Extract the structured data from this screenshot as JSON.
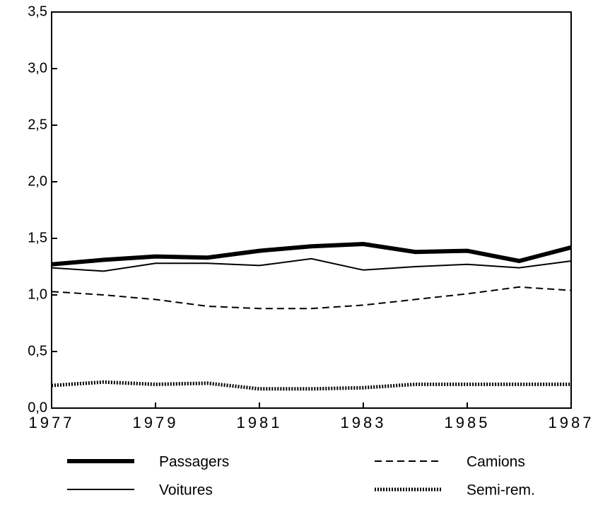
{
  "chart_data": {
    "type": "line",
    "x": [
      1977,
      1978,
      1979,
      1980,
      1981,
      1982,
      1983,
      1984,
      1985,
      1986,
      1987
    ],
    "series": [
      {
        "name": "Passagers",
        "color": "#000000",
        "style": "solid",
        "width": 6,
        "values": [
          1.27,
          1.31,
          1.34,
          1.33,
          1.39,
          1.43,
          1.45,
          1.38,
          1.39,
          1.3,
          1.42
        ]
      },
      {
        "name": "Camions",
        "color": "#000000",
        "style": "dashed",
        "width": 2,
        "values": [
          1.03,
          1.0,
          0.96,
          0.9,
          0.88,
          0.88,
          0.91,
          0.96,
          1.01,
          1.07,
          1.04
        ]
      },
      {
        "name": "Voitures",
        "color": "#000000",
        "style": "solid",
        "width": 2,
        "values": [
          1.24,
          1.21,
          1.28,
          1.28,
          1.26,
          1.32,
          1.22,
          1.25,
          1.27,
          1.24,
          1.3
        ]
      },
      {
        "name": "Semi-rem.",
        "color": "#000000",
        "style": "dotted",
        "width": 5,
        "values": [
          0.2,
          0.23,
          0.21,
          0.22,
          0.17,
          0.17,
          0.18,
          0.21,
          0.21,
          0.21,
          0.21
        ]
      }
    ],
    "xlim": [
      1977,
      1987
    ],
    "xticks": [
      1977,
      1979,
      1981,
      1983,
      1985,
      1987
    ],
    "ylim": [
      0,
      3.5
    ],
    "yticks": [
      {
        "value": 0,
        "label": "0,0"
      },
      {
        "value": 0.5,
        "label": "0,5"
      },
      {
        "value": 1,
        "label": "1,0"
      },
      {
        "value": 1.5,
        "label": "1,5"
      },
      {
        "value": 2,
        "label": "2,0"
      },
      {
        "value": 2.5,
        "label": "2,5"
      },
      {
        "value": 3,
        "label": "3,0"
      },
      {
        "value": 3.5,
        "label": "3,5"
      }
    ]
  }
}
